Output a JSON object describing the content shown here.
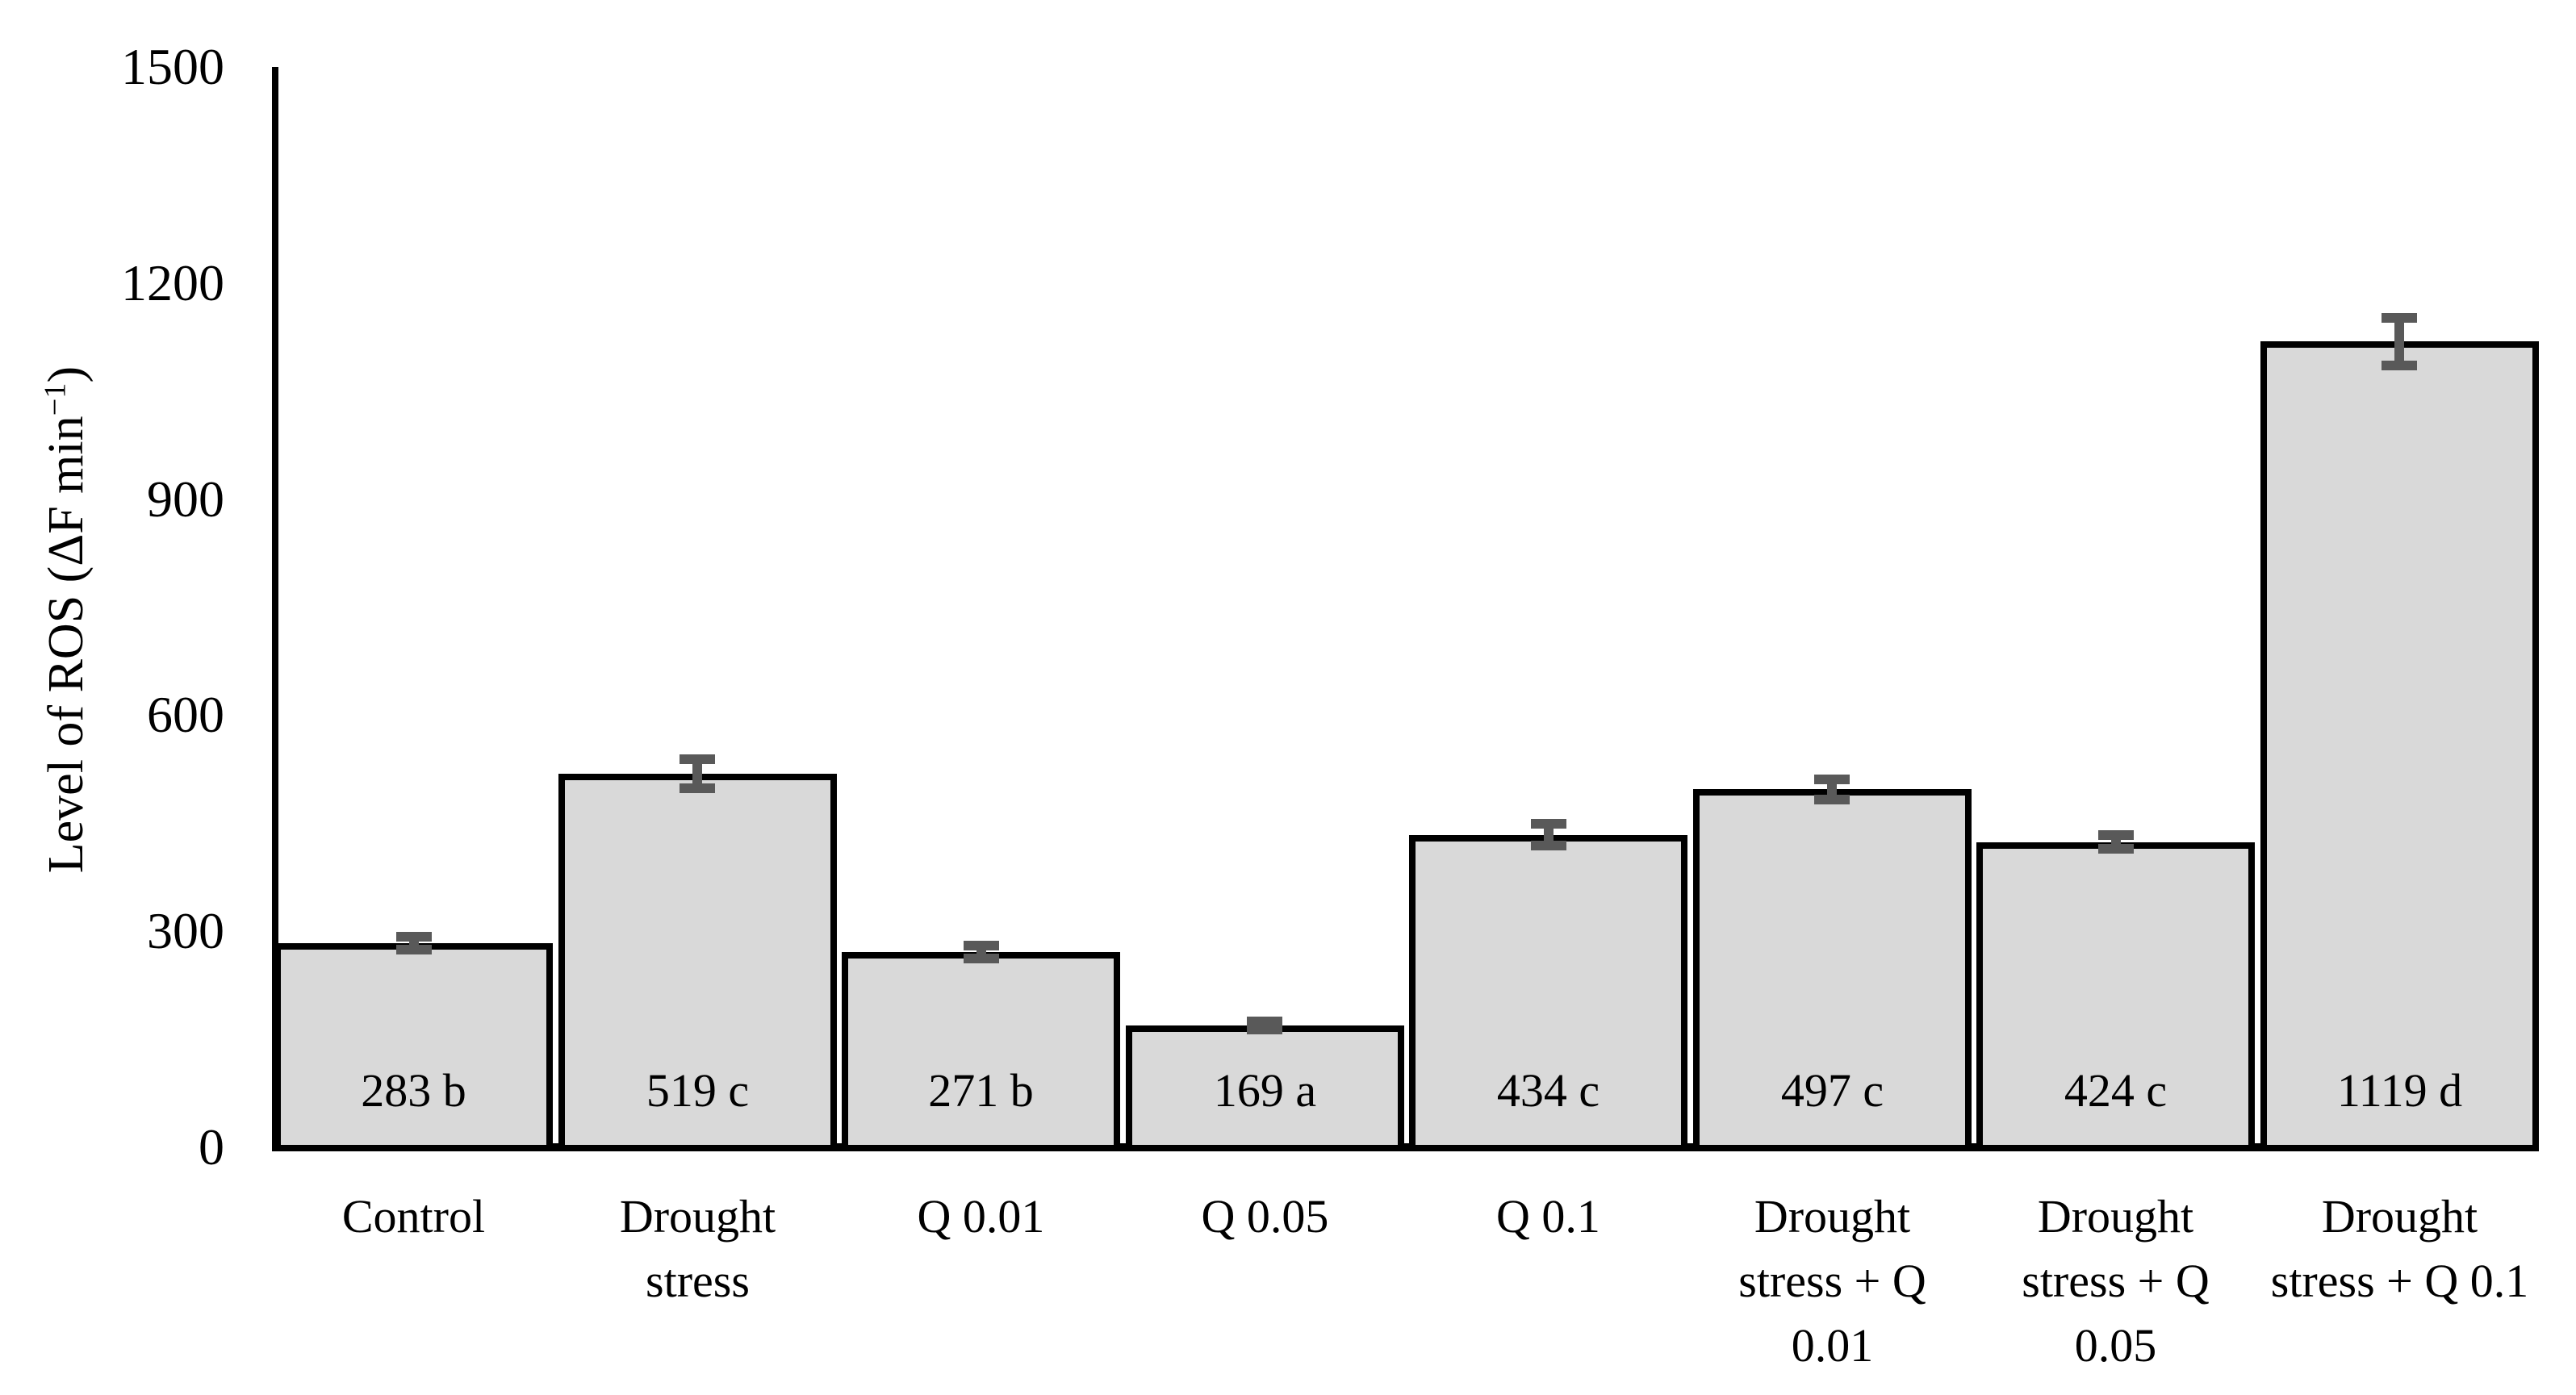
{
  "chart_data": {
    "type": "bar",
    "title": "",
    "xlabel": "",
    "ylabel": "Level of ROS (ΔF min⁻¹)",
    "ylabel_parts": {
      "main": "Level of ROS (ΔF min",
      "sup": "−1",
      "close": ")"
    },
    "categories": [
      "Control",
      "Drought stress",
      "Q 0.01",
      "Q 0.05",
      "Q 0.1",
      "Drought stress + Q 0.01",
      "Drought stress + Q 0.05",
      "Drought stress + Q 0.1"
    ],
    "category_label_lines": [
      [
        "Control"
      ],
      [
        "Drought",
        "stress"
      ],
      [
        "Q 0.01"
      ],
      [
        "Q 0.05"
      ],
      [
        "Q 0.1"
      ],
      [
        "Drought",
        "stress + Q",
        "0.01"
      ],
      [
        "Drought",
        "stress + Q",
        "0.05"
      ],
      [
        "Drought",
        "stress + Q 0.1"
      ]
    ],
    "values": [
      283,
      519,
      271,
      169,
      434,
      497,
      424,
      1119
    ],
    "bar_labels": [
      "283 b",
      "519 c",
      "271 b",
      "169 a",
      "434 c",
      "497 c",
      "424 c",
      "1119 d"
    ],
    "errors": [
      9,
      20,
      9,
      6,
      15,
      14,
      10,
      33
    ],
    "ylim": [
      0,
      1500
    ],
    "yticks": [
      0,
      300,
      600,
      900,
      1200,
      1500
    ],
    "grid": false,
    "legend": null,
    "colors": {
      "bar_fill": "#d9d9d9",
      "bar_border": "#000000",
      "error_bar": "#595959",
      "axis": "#000000",
      "text": "#000000",
      "background": "#ffffff"
    }
  }
}
